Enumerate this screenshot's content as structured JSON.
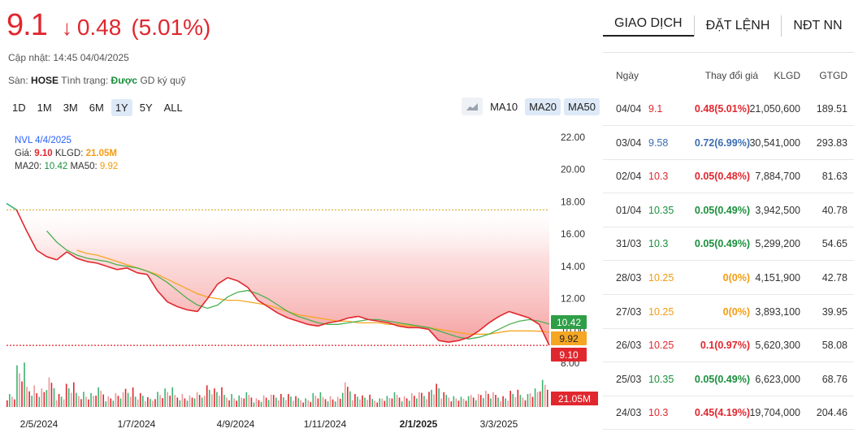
{
  "header": {
    "price": "9.1",
    "arrow": "↓",
    "change": "0.48",
    "change_pct": "(5.01%)",
    "updated": "Cập nhật: 14:45 04/04/2025",
    "exchange_label": "Sàn:",
    "exchange": "HOSE",
    "status_label": "Tình trạng:",
    "status": "Được",
    "margin": "GD ký quỹ"
  },
  "ranges": [
    "1D",
    "1M",
    "3M",
    "6M",
    "1Y",
    "5Y",
    "ALL"
  ],
  "active_range": "1Y",
  "ma_toggles": [
    "MA10",
    "MA20",
    "MA50"
  ],
  "chart_icon": "area-chart-icon",
  "info": {
    "symbol_date": "NVL 4/4/2025",
    "price_label": "Giá:",
    "price": "9.10",
    "vol_label": "KLGD:",
    "vol": "21.05M",
    "ma20_label": "MA20:",
    "ma20": "10.42",
    "ma50_label": "MA50:",
    "ma50": "9.92"
  },
  "badges": {
    "ma20": "10.42",
    "ma50": "9.92",
    "price": "9.10",
    "volume": "21.05M"
  },
  "colors": {
    "up": "#1a8f3c",
    "down": "#e0272e",
    "ref": "#f39c12",
    "ceiling": "#7b3fb2",
    "ma20": "#4caf50",
    "ma50": "#f5a623"
  },
  "chart_data": {
    "type": "line",
    "y_ticks": [
      "22.00",
      "20.00",
      "18.00",
      "16.00",
      "14.00",
      "12.00",
      "10.00",
      "8.00"
    ],
    "ylim": [
      8,
      22
    ],
    "x_ticks": [
      "2/5/2024",
      "1/7/2024",
      "4/9/2024",
      "1/11/2024",
      "2/1/2025",
      "3/3/2025"
    ],
    "x_ticks_bold": [
      "2/1/2025"
    ],
    "reference_lines": [
      {
        "name": "reference",
        "value": 17.5,
        "color": "#d9b43c"
      },
      {
        "name": "last",
        "value": 9.1,
        "color": "#e0272e"
      }
    ],
    "series": [
      {
        "name": "NVL",
        "values": [
          17.9,
          17.5,
          16.2,
          15.0,
          14.6,
          14.4,
          14.9,
          14.5,
          14.3,
          14.2,
          14.0,
          13.8,
          13.9,
          13.6,
          13.5,
          12.5,
          11.8,
          11.5,
          11.3,
          11.2,
          12.0,
          12.9,
          13.3,
          13.1,
          12.7,
          11.9,
          11.5,
          11.1,
          10.8,
          10.6,
          10.4,
          10.3,
          10.5,
          10.6,
          10.8,
          10.9,
          10.7,
          10.6,
          10.5,
          10.3,
          10.2,
          10.2,
          10.1,
          9.4,
          9.3,
          9.4,
          9.6,
          10.0,
          10.5,
          10.9,
          11.2,
          11.0,
          10.8,
          10.4,
          9.1
        ]
      },
      {
        "name": "MA20",
        "values": [
          null,
          null,
          null,
          null,
          16.2,
          15.5,
          15.0,
          14.7,
          14.5,
          14.4,
          14.3,
          14.1,
          14.0,
          13.9,
          13.7,
          13.4,
          13.0,
          12.5,
          12.0,
          11.6,
          11.4,
          11.6,
          12.1,
          12.4,
          12.5,
          12.3,
          12.0,
          11.6,
          11.2,
          10.9,
          10.7,
          10.5,
          10.4,
          10.4,
          10.5,
          10.6,
          10.7,
          10.7,
          10.6,
          10.5,
          10.4,
          10.3,
          10.2,
          10.0,
          9.8,
          9.6,
          9.5,
          9.6,
          9.8,
          10.1,
          10.4,
          10.6,
          10.7,
          10.6,
          10.42
        ]
      },
      {
        "name": "MA50",
        "values": [
          null,
          null,
          null,
          null,
          null,
          null,
          null,
          15.0,
          14.8,
          14.7,
          14.5,
          14.3,
          14.1,
          13.9,
          13.7,
          13.5,
          13.2,
          12.9,
          12.6,
          12.3,
          12.1,
          12.0,
          11.9,
          11.9,
          11.8,
          11.7,
          11.6,
          11.4,
          11.2,
          11.0,
          10.9,
          10.8,
          10.7,
          10.6,
          10.6,
          10.5,
          10.5,
          10.5,
          10.4,
          10.4,
          10.3,
          10.3,
          10.2,
          10.1,
          10.0,
          9.9,
          9.8,
          9.8,
          9.8,
          9.9,
          10.0,
          10.0,
          10.0,
          9.98,
          9.92
        ]
      }
    ],
    "volume_series": {
      "name": "KLGD",
      "unit": "M",
      "last": 21.05
    }
  },
  "right": {
    "tabs": [
      "GIAO DỊCH",
      "ĐẶT LỆNH",
      "NĐT NN"
    ],
    "headers": [
      "Ngày",
      "Thay đổi giá",
      "KLGD",
      "GTGD"
    ],
    "rows": [
      {
        "date": "04/04",
        "price": "9.1",
        "change": "0.48(5.01%)",
        "volume": "21,050,600",
        "value": "189.51",
        "color": "red"
      },
      {
        "date": "03/04",
        "price": "9.58",
        "change": "0.72(6.99%)",
        "volume": "30,541,000",
        "value": "293.83",
        "color": "blue"
      },
      {
        "date": "02/04",
        "price": "10.3",
        "change": "0.05(0.48%)",
        "volume": "7,884,700",
        "value": "81.63",
        "color": "red"
      },
      {
        "date": "01/04",
        "price": "10.35",
        "change": "0.05(0.49%)",
        "volume": "3,942,500",
        "value": "40.78",
        "color": "green-t"
      },
      {
        "date": "31/03",
        "price": "10.3",
        "change": "0.05(0.49%)",
        "volume": "5,299,200",
        "value": "54.65",
        "color": "green-t"
      },
      {
        "date": "28/03",
        "price": "10.25",
        "change": "0(0%)",
        "volume": "4,151,900",
        "value": "42.78",
        "color": "orange-t"
      },
      {
        "date": "27/03",
        "price": "10.25",
        "change": "0(0%)",
        "volume": "3,893,100",
        "value": "39.95",
        "color": "orange-t"
      },
      {
        "date": "26/03",
        "price": "10.25",
        "change": "0.1(0.97%)",
        "volume": "5,620,300",
        "value": "58.08",
        "color": "red"
      },
      {
        "date": "25/03",
        "price": "10.35",
        "change": "0.05(0.49%)",
        "volume": "6,623,000",
        "value": "68.76",
        "color": "green-t"
      },
      {
        "date": "24/03",
        "price": "10.3",
        "change": "0.45(4.19%)",
        "volume": "19,704,000",
        "value": "204.46",
        "color": "red"
      }
    ]
  }
}
